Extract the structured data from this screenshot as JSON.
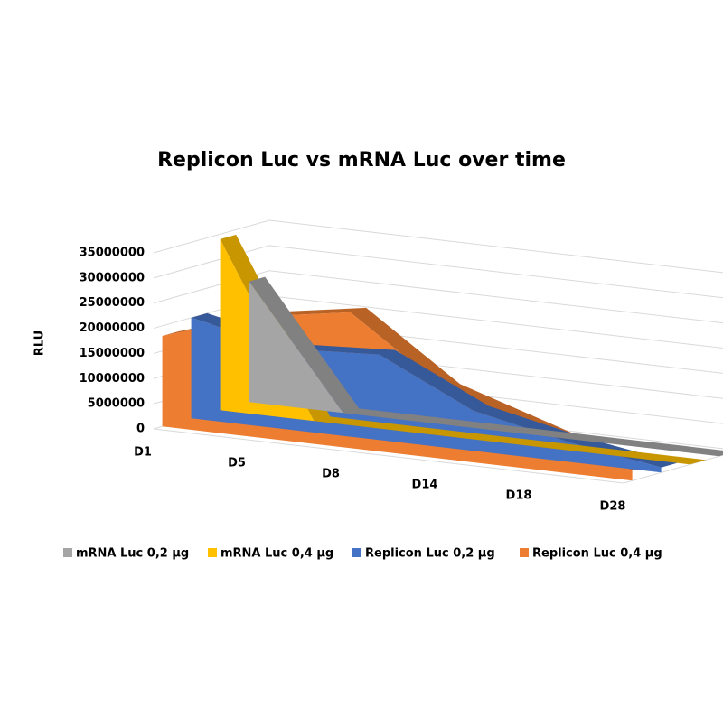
{
  "chart_data": {
    "type": "area3d",
    "title": "Replicon Luc vs mRNA Luc over time",
    "y_label": "RLU",
    "categories": [
      "D1",
      "D5",
      "D8",
      "D14",
      "D18",
      "D28"
    ],
    "series": [
      {
        "name": "mRNA Luc 0,2 µg",
        "color": "#a5a5a5",
        "values": [
          24000000,
          0,
          0,
          0,
          0,
          0
        ]
      },
      {
        "name": "mRNA Luc 0,4 µg",
        "color": "#ffc000",
        "values": [
          34000000,
          0,
          0,
          0,
          0,
          0
        ]
      },
      {
        "name": "Replicon Luc 0,2 µg",
        "color": "#4472c4",
        "values": [
          20000000,
          16000000,
          17000000,
          8000000,
          4000000,
          1000000
        ]
      },
      {
        "name": "Replicon Luc 0,4 µg",
        "color": "#ed7d31",
        "values": [
          18000000,
          24000000,
          27000000,
          14000000,
          8000000,
          2000000
        ]
      }
    ],
    "ylim": [
      0,
      35000000
    ],
    "yticks": [
      0,
      5000000,
      10000000,
      15000000,
      20000000,
      25000000,
      30000000,
      35000000
    ],
    "grid": true
  }
}
